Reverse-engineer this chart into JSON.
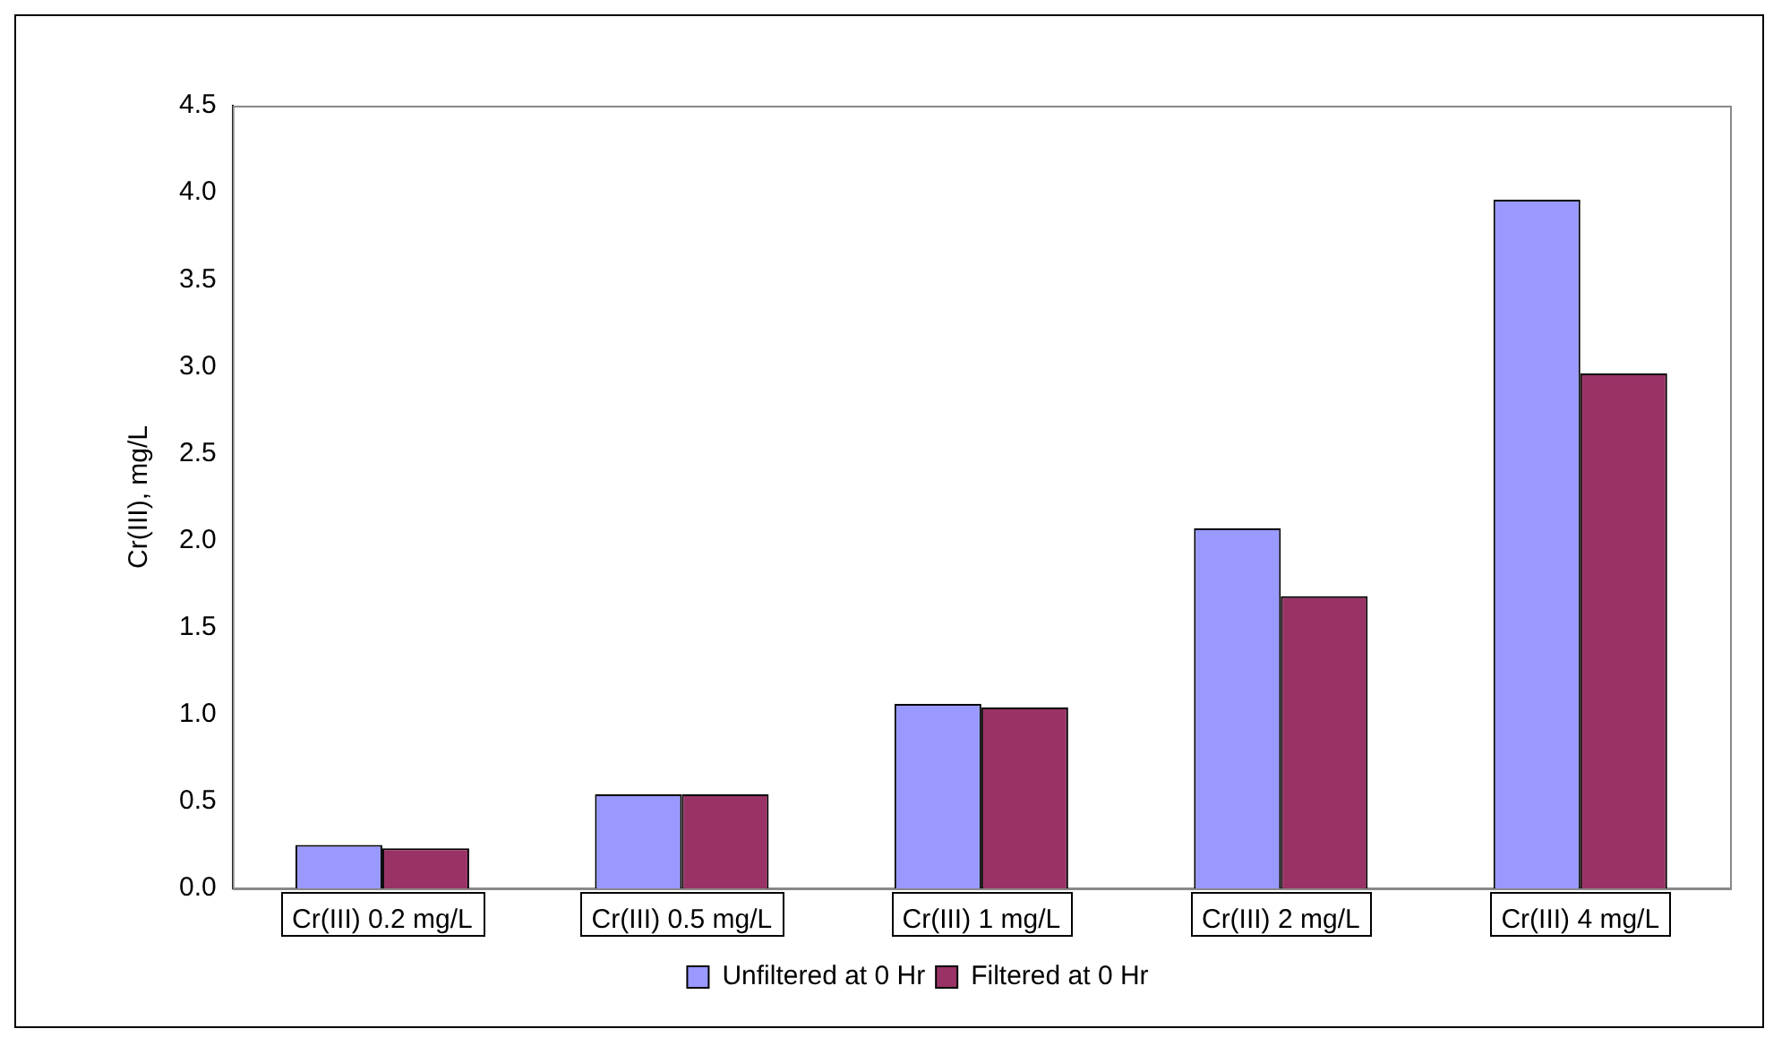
{
  "chart_data": {
    "type": "bar",
    "ylabel": "Cr(III), mg/L",
    "categories": [
      "Cr(III) 0.2 mg/L",
      "Cr(III) 0.5 mg/L",
      "Cr(III) 1 mg/L",
      "Cr(III) 2 mg/L",
      "Cr(III) 4 mg/L"
    ],
    "series": [
      {
        "name": "Unfiltered at 0 Hr",
        "color": "#9999ff",
        "values": [
          0.25,
          0.54,
          1.06,
          2.07,
          3.96
        ]
      },
      {
        "name": "Filtered at 0 Hr",
        "color": "#993366",
        "values": [
          0.23,
          0.54,
          1.04,
          1.68,
          2.96
        ]
      }
    ],
    "ylim": [
      0,
      4.5
    ],
    "yticks": [
      {
        "value": 0,
        "label": "0.0"
      },
      {
        "value": 0.5,
        "label": "0.5"
      },
      {
        "value": 1,
        "label": "1.0"
      },
      {
        "value": 1.5,
        "label": "1.5"
      },
      {
        "value": 2,
        "label": "2.0"
      },
      {
        "value": 2.5,
        "label": "2.5"
      },
      {
        "value": 3,
        "label": "3.0"
      },
      {
        "value": 3.5,
        "label": "3.5"
      },
      {
        "value": 4,
        "label": "4.0"
      },
      {
        "value": 4.5,
        "label": "4.5"
      }
    ],
    "grid": false,
    "legend": "bottom"
  }
}
